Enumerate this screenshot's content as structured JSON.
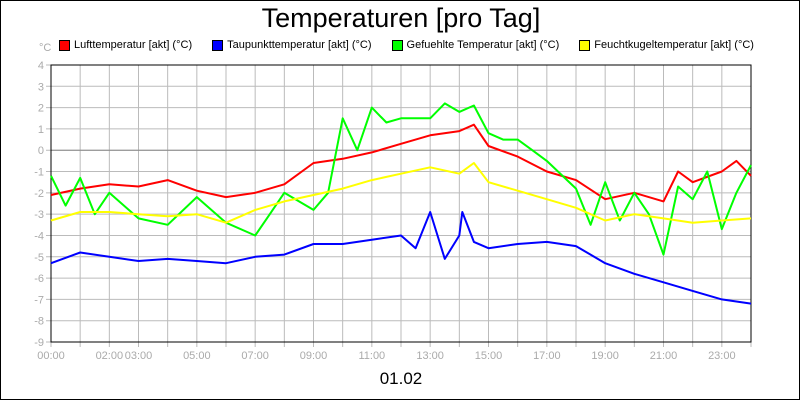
{
  "chart_data": {
    "type": "line",
    "title": "Temperaturen [pro Tag]",
    "xlabel": "01.02",
    "ylabel": "°C",
    "ylim": [
      -9,
      4
    ],
    "xlim": [
      0,
      24
    ],
    "grid": true,
    "legend_position": "top",
    "yticks": [
      4,
      3,
      2,
      1,
      0,
      -1,
      -2,
      -3,
      -4,
      -5,
      -6,
      -7,
      -8,
      -9
    ],
    "xtick_labels": [
      {
        "h": 0,
        "label": "00:00"
      },
      {
        "h": 2,
        "label": "02:00"
      },
      {
        "h": 3,
        "label": "03:00"
      },
      {
        "h": 5,
        "label": "05:00"
      },
      {
        "h": 7,
        "label": "07:00"
      },
      {
        "h": 9,
        "label": "09:00"
      },
      {
        "h": 11,
        "label": "11:00"
      },
      {
        "h": 13,
        "label": "13:00"
      },
      {
        "h": 15,
        "label": "15:00"
      },
      {
        "h": 17,
        "label": "17:00"
      },
      {
        "h": 19,
        "label": "19:00"
      },
      {
        "h": 21,
        "label": "21:00"
      },
      {
        "h": 23,
        "label": "23:00"
      }
    ],
    "series": [
      {
        "name": "Lufttemperatur [akt] (°C)",
        "color": "#ff0000",
        "x": [
          0,
          1,
          2,
          3,
          4,
          5,
          6,
          7,
          8,
          9,
          10,
          11,
          12,
          13,
          14,
          14.5,
          15,
          16,
          17,
          18,
          19,
          20,
          21,
          21.5,
          22,
          23,
          23.5,
          24
        ],
        "y": [
          -2.1,
          -1.8,
          -1.6,
          -1.7,
          -1.4,
          -1.9,
          -2.2,
          -2,
          -1.6,
          -0.6,
          -0.4,
          -0.1,
          0.3,
          0.7,
          0.9,
          1.2,
          0.2,
          -0.3,
          -1.0,
          -1.4,
          -2.3,
          -2.0,
          -2.4,
          -1.0,
          -1.5,
          -1.0,
          -0.5,
          -1.2
        ]
      },
      {
        "name": "Taupunkttemperatur [akt] (°C)",
        "color": "#0000ff",
        "x": [
          0,
          1,
          2,
          3,
          4,
          5,
          6,
          7,
          8,
          9,
          10,
          11,
          12,
          12.5,
          13,
          13.5,
          14,
          14.1,
          14.5,
          15,
          16,
          17,
          18,
          19,
          20,
          21,
          22,
          23,
          24
        ],
        "y": [
          -5.3,
          -4.8,
          -5.0,
          -5.2,
          -5.1,
          -5.2,
          -5.3,
          -5.0,
          -4.9,
          -4.4,
          -4.4,
          -4.2,
          -4.0,
          -4.6,
          -2.9,
          -5.1,
          -4.0,
          -2.9,
          -4.3,
          -4.6,
          -4.4,
          -4.3,
          -4.5,
          -5.3,
          -5.8,
          -6.2,
          -6.6,
          -7.0,
          -7.2
        ]
      },
      {
        "name": "Gefuehlte Temperatur [akt] (°C)",
        "color": "#00ff00",
        "x": [
          0,
          0.5,
          1,
          1.5,
          2,
          3,
          4,
          5,
          6,
          7,
          7.5,
          8,
          9,
          9.5,
          10,
          10.5,
          11,
          11.5,
          12,
          13,
          13.5,
          14,
          14.5,
          15,
          15.5,
          16,
          16.5,
          17,
          18,
          18.5,
          19,
          19.5,
          20,
          20.5,
          21,
          21.5,
          22,
          22.5,
          23,
          23.5,
          24
        ],
        "y": [
          -1.2,
          -2.6,
          -1.3,
          -3.0,
          -2.0,
          -3.2,
          -3.5,
          -2.2,
          -3.4,
          -4.0,
          -3.0,
          -2.0,
          -2.8,
          -2.0,
          1.5,
          0.0,
          2.0,
          1.3,
          1.5,
          1.5,
          2.2,
          1.8,
          2.1,
          0.8,
          0.5,
          0.5,
          0.0,
          -0.5,
          -1.8,
          -3.5,
          -1.5,
          -3.3,
          -2.0,
          -3.0,
          -4.9,
          -1.7,
          -2.3,
          -1.0,
          -3.7,
          -2.0,
          -0.7
        ]
      },
      {
        "name": "Feuchtkugeltemperatur [akt] (°C)",
        "color": "#ffff00",
        "x": [
          0,
          1,
          2,
          3,
          4,
          5,
          6,
          7,
          8,
          9,
          10,
          11,
          12,
          13,
          14,
          14.5,
          15,
          16,
          17,
          18,
          19,
          20,
          21,
          22,
          23,
          24
        ],
        "y": [
          -3.3,
          -2.9,
          -2.9,
          -3.0,
          -3.1,
          -3.0,
          -3.4,
          -2.8,
          -2.4,
          -2.1,
          -1.8,
          -1.4,
          -1.1,
          -0.8,
          -1.1,
          -0.6,
          -1.5,
          -1.9,
          -2.3,
          -2.7,
          -3.3,
          -3.0,
          -3.2,
          -3.4,
          -3.3,
          -3.2
        ]
      }
    ]
  }
}
